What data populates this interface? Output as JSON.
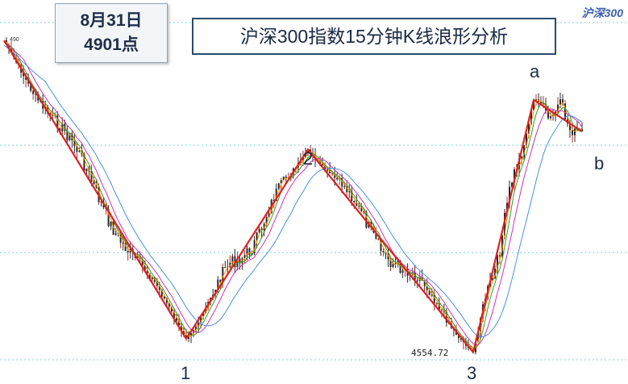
{
  "title": "沪深300指数15分钟K线浪形分析",
  "corner_label": "沪深300",
  "callout": {
    "date": "8月31日",
    "value": "4901点"
  },
  "low_label": "4554.72",
  "start_tag": "490",
  "wave_labels": {
    "w1": "1",
    "w2": "2",
    "w3": "3",
    "wa": "a",
    "wb": "b"
  },
  "colors": {
    "wave_line": "#e02020",
    "candles": "#2a2a2a",
    "ma_fast": "#ff8c00",
    "ma_green": "#2ca02c",
    "ma_magenta": "#d62fb0",
    "ma_blue": "#4a90e2",
    "grid": "#7fd3d3"
  },
  "chart_data": {
    "type": "line",
    "title": "沪深300指数15分钟K线浪形分析",
    "xlabel": "",
    "ylabel": "",
    "wave_points": [
      {
        "label": "",
        "value": 4901
      },
      {
        "label": "1",
        "value": 4570
      },
      {
        "label": "2",
        "value": 4780
      },
      {
        "label": "3",
        "value": 4555
      },
      {
        "label": "a",
        "value": 4835
      },
      {
        "label": "b",
        "value": 4800
      }
    ],
    "annotated_high": 4901,
    "annotated_low": 4554.72,
    "grid": "dashed horizontal"
  }
}
